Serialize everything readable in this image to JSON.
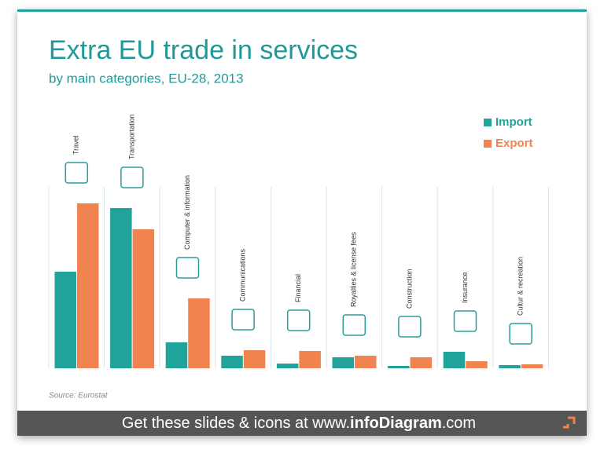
{
  "chart_data": {
    "type": "bar",
    "title": "Extra EU trade in services",
    "subtitle": "by main categories, EU-28, 2013",
    "categories": [
      "Travel",
      "Transportation",
      "Computer & information",
      "Communications",
      "Financial",
      "Royalties & license fees",
      "Construction",
      "Insurance",
      "Cultur & recreation"
    ],
    "series": [
      {
        "name": "Import",
        "color": "#1fa39a",
        "values": [
          123,
          204,
          33,
          16,
          6,
          14,
          3,
          21,
          4
        ]
      },
      {
        "name": "Export",
        "color": "#f0834f",
        "values": [
          210,
          177,
          89,
          23,
          22,
          16,
          14,
          9,
          5
        ]
      }
    ],
    "ylim": [
      0,
      240
    ],
    "source": "Source: Eurostat"
  },
  "footer": {
    "prefix": "Get these slides & icons at www.",
    "brand": "infoDiagram",
    "suffix": ".com"
  }
}
